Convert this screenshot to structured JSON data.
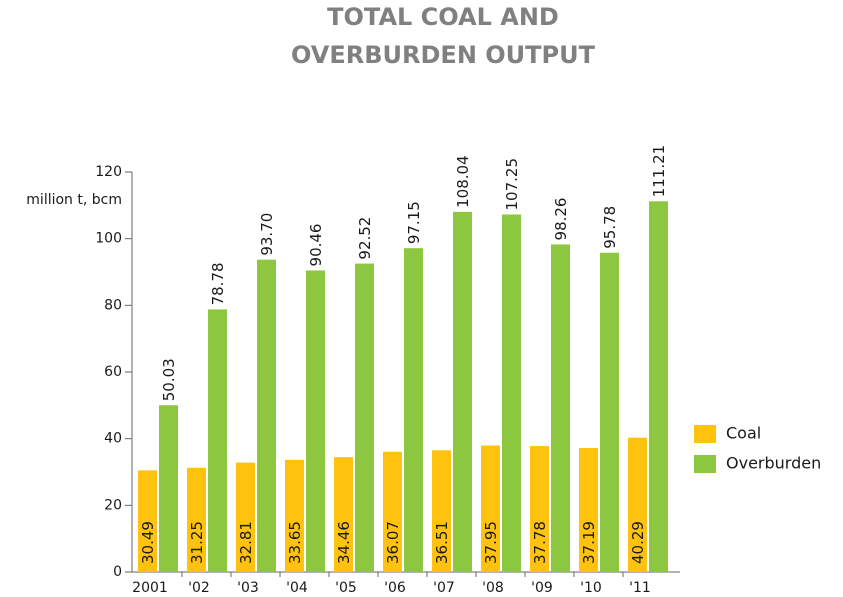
{
  "chart_data": {
    "type": "bar",
    "title": [
      "TOTAL COAL AND",
      "OVERBURDEN OUTPUT"
    ],
    "y_label": "million t, bcm",
    "categories": [
      "2001",
      "'02",
      "'03",
      "'04",
      "'05",
      "'06",
      "'07",
      "'08",
      "'09",
      "'10",
      "'11"
    ],
    "series": [
      {
        "name": "Coal",
        "color": "#ffc20e",
        "values": [
          30.49,
          31.25,
          32.81,
          33.65,
          34.46,
          36.07,
          36.51,
          37.95,
          37.78,
          37.19,
          40.29
        ],
        "value_labels": [
          "30.49",
          "31.25",
          "32.81",
          "33.65",
          "34.46",
          "36.07",
          "36.51",
          "37.95",
          "37.78",
          "37.19",
          "40.29"
        ]
      },
      {
        "name": "Overburden",
        "color": "#8dc63f",
        "values": [
          50.03,
          78.78,
          93.7,
          90.46,
          92.52,
          97.15,
          108.04,
          107.25,
          98.26,
          95.78,
          111.21
        ],
        "value_labels": [
          "50.03",
          "78.78",
          "93.70",
          "90.46",
          "92.52",
          "97.15",
          "108.04",
          "107.25",
          "98.26",
          "95.78",
          "111.21"
        ]
      }
    ],
    "ylim": [
      0,
      120
    ],
    "yticks": [
      0,
      20,
      40,
      60,
      80,
      100,
      120
    ],
    "legend": "right"
  }
}
